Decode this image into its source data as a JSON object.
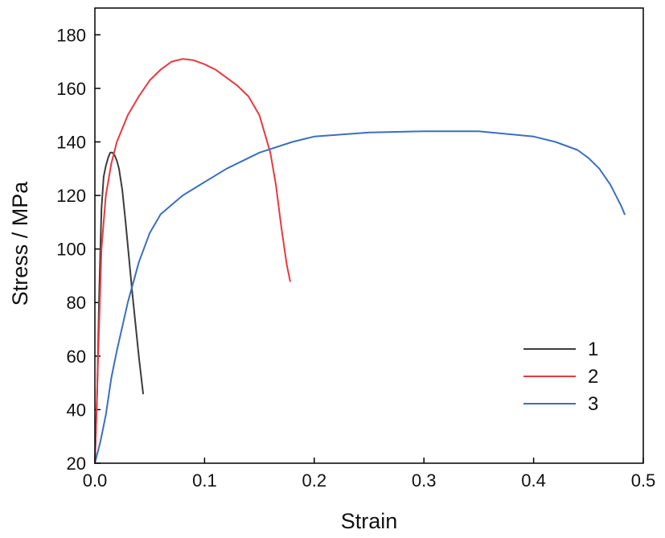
{
  "chart_data": {
    "type": "line",
    "xlabel": "Strain",
    "ylabel": "Stress / MPa",
    "xlim": [
      0,
      0.5
    ],
    "ylim": [
      20,
      190
    ],
    "x_ticks": [
      "0.0",
      "0.1",
      "0.2",
      "0.3",
      "0.4",
      "0.5"
    ],
    "y_ticks": [
      "20",
      "40",
      "60",
      "80",
      "100",
      "120",
      "140",
      "160",
      "180"
    ],
    "grid": false,
    "legend_position": "bottom-right",
    "series": [
      {
        "name": "1",
        "color": "#3c3c3c",
        "x": [
          0.0,
          0.002,
          0.004,
          0.006,
          0.008,
          0.01,
          0.012,
          0.014,
          0.016,
          0.018,
          0.02,
          0.022,
          0.025,
          0.028,
          0.031,
          0.034,
          0.037,
          0.04,
          0.042,
          0.044
        ],
        "y": [
          20,
          45,
          85,
          115,
          127,
          131,
          134,
          136,
          136,
          135,
          133,
          130,
          122,
          110,
          97,
          84,
          72,
          60,
          53,
          46
        ]
      },
      {
        "name": "2",
        "color": "#e8393f",
        "x": [
          0.0,
          0.003,
          0.006,
          0.01,
          0.015,
          0.02,
          0.03,
          0.04,
          0.05,
          0.06,
          0.07,
          0.08,
          0.09,
          0.1,
          0.11,
          0.12,
          0.13,
          0.14,
          0.15,
          0.16,
          0.165,
          0.17,
          0.175,
          0.178
        ],
        "y": [
          20,
          60,
          100,
          120,
          132,
          140,
          150,
          157,
          163,
          167,
          170,
          171,
          170.5,
          169,
          167,
          164,
          161,
          157,
          150,
          136,
          124,
          108,
          94,
          88
        ]
      },
      {
        "name": "3",
        "color": "#3b6fc0",
        "x": [
          0.0,
          0.005,
          0.01,
          0.015,
          0.02,
          0.03,
          0.04,
          0.05,
          0.06,
          0.08,
          0.1,
          0.12,
          0.15,
          0.18,
          0.2,
          0.25,
          0.3,
          0.35,
          0.4,
          0.42,
          0.44,
          0.45,
          0.46,
          0.47,
          0.48,
          0.483
        ],
        "y": [
          20,
          28,
          38,
          52,
          62,
          80,
          95,
          106,
          113,
          120,
          125,
          130,
          136,
          140,
          142,
          143.5,
          144,
          144,
          142,
          140,
          137,
          134,
          130,
          124,
          116,
          113
        ]
      }
    ]
  }
}
